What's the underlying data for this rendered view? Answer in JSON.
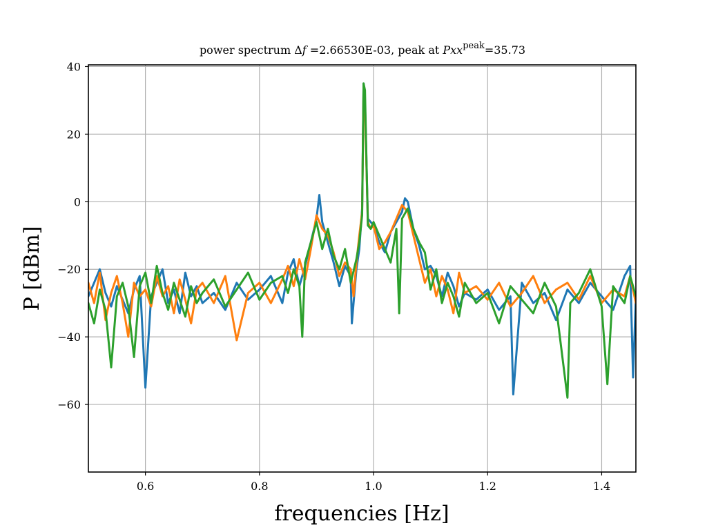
{
  "chart_data": {
    "type": "line",
    "title": "power spectrum Δf =2.66530E-03, peak at Pxx^peak=35.73",
    "title_parts": {
      "prefix": "power spectrum ",
      "delta": "Δ",
      "f": "f",
      "eq": " =2.66530E-03, peak at ",
      "pxx": "Pxx",
      "sup": "peak",
      "value": "=35.73"
    },
    "xlabel": "frequencies [Hz]",
    "ylabel": "P [dBm]",
    "xlim": [
      0.5,
      1.46
    ],
    "ylim": [
      -80,
      40.5
    ],
    "xticks": [
      0.6,
      0.8,
      1.0,
      1.2,
      1.4
    ],
    "xtick_labels": [
      "0.6",
      "0.8",
      "1.0",
      "1.2",
      "1.4"
    ],
    "yticks": [
      -60,
      -40,
      -20,
      0,
      20,
      40
    ],
    "ytick_labels": [
      "−60",
      "−40",
      "−20",
      "0",
      "20",
      "40"
    ],
    "grid": true,
    "colors": [
      "#1f77b4",
      "#ff7f0e",
      "#2ca02c"
    ],
    "series": [
      {
        "x": [
          0.5,
          0.51,
          0.52,
          0.53,
          0.54,
          0.55,
          0.56,
          0.57,
          0.58,
          0.59,
          0.6,
          0.61,
          0.62,
          0.63,
          0.64,
          0.65,
          0.66,
          0.67,
          0.68,
          0.69,
          0.7,
          0.72,
          0.74,
          0.76,
          0.78,
          0.8,
          0.82,
          0.84,
          0.85,
          0.86,
          0.87,
          0.88,
          0.89,
          0.9,
          0.905,
          0.91,
          0.92,
          0.93,
          0.94,
          0.95,
          0.96,
          0.962,
          0.97,
          0.975,
          0.98,
          0.9825,
          0.985,
          0.99,
          0.995,
          1.0,
          1.01,
          1.02,
          1.03,
          1.04,
          1.05,
          1.055,
          1.06,
          1.07,
          1.08,
          1.09,
          1.1,
          1.11,
          1.12,
          1.13,
          1.14,
          1.15,
          1.16,
          1.18,
          1.2,
          1.22,
          1.24,
          1.245,
          1.26,
          1.28,
          1.3,
          1.32,
          1.34,
          1.36,
          1.38,
          1.4,
          1.42,
          1.44,
          1.45,
          1.455,
          1.46
        ],
        "y": [
          -28,
          -24,
          -20,
          -27,
          -31,
          -25,
          -29,
          -33,
          -26,
          -22,
          -55,
          -28,
          -24,
          -20,
          -30,
          -26,
          -33,
          -21,
          -28,
          -25,
          -30,
          -27,
          -32,
          -24,
          -29,
          -26,
          -22,
          -30,
          -21,
          -17,
          -25,
          -19,
          -12,
          -5,
          2,
          -6,
          -12,
          -18,
          -25,
          -19,
          -22,
          -36,
          -20,
          -14,
          -2,
          35,
          30,
          -5,
          -6,
          -7,
          -12,
          -15,
          -9,
          -6,
          -3,
          1,
          0,
          -8,
          -13,
          -20,
          -19,
          -22,
          -28,
          -21,
          -25,
          -31,
          -27,
          -29,
          -26,
          -32,
          -28,
          -57,
          -24,
          -30,
          -27,
          -35,
          -26,
          -30,
          -24,
          -28,
          -32,
          -22,
          -19,
          -52,
          -28
        ]
      },
      {
        "x": [
          0.5,
          0.51,
          0.52,
          0.53,
          0.54,
          0.55,
          0.56,
          0.57,
          0.58,
          0.59,
          0.6,
          0.61,
          0.62,
          0.63,
          0.64,
          0.65,
          0.66,
          0.67,
          0.68,
          0.69,
          0.7,
          0.72,
          0.74,
          0.76,
          0.78,
          0.8,
          0.82,
          0.84,
          0.85,
          0.86,
          0.87,
          0.88,
          0.89,
          0.9,
          0.91,
          0.92,
          0.93,
          0.94,
          0.95,
          0.96,
          0.965,
          0.97,
          0.975,
          0.98,
          0.9825,
          0.985,
          0.99,
          0.995,
          1.0,
          1.01,
          1.02,
          1.03,
          1.04,
          1.05,
          1.06,
          1.07,
          1.08,
          1.09,
          1.1,
          1.11,
          1.12,
          1.13,
          1.14,
          1.15,
          1.16,
          1.18,
          1.2,
          1.22,
          1.24,
          1.26,
          1.28,
          1.3,
          1.32,
          1.34,
          1.36,
          1.38,
          1.4,
          1.42,
          1.44,
          1.45,
          1.46
        ],
        "y": [
          -24,
          -30,
          -21,
          -35,
          -27,
          -22,
          -30,
          -40,
          -24,
          -28,
          -26,
          -31,
          -22,
          -28,
          -25,
          -33,
          -23,
          -29,
          -36,
          -26,
          -24,
          -30,
          -22,
          -41,
          -27,
          -24,
          -30,
          -23,
          -19,
          -25,
          -17,
          -23,
          -14,
          -4,
          -8,
          -10,
          -15,
          -22,
          -18,
          -20,
          -28,
          -18,
          -10,
          -3,
          34,
          28,
          -6,
          -8,
          -7,
          -14,
          -12,
          -9,
          -5,
          -1,
          -3,
          -10,
          -17,
          -24,
          -20,
          -28,
          -22,
          -26,
          -33,
          -21,
          -27,
          -25,
          -29,
          -24,
          -31,
          -27,
          -22,
          -30,
          -26,
          -24,
          -29,
          -22,
          -30,
          -26,
          -28,
          -22,
          -30
        ]
      },
      {
        "x": [
          0.5,
          0.51,
          0.52,
          0.53,
          0.54,
          0.55,
          0.56,
          0.57,
          0.58,
          0.59,
          0.6,
          0.61,
          0.62,
          0.63,
          0.64,
          0.65,
          0.66,
          0.67,
          0.68,
          0.69,
          0.7,
          0.72,
          0.74,
          0.76,
          0.78,
          0.8,
          0.82,
          0.84,
          0.85,
          0.86,
          0.87,
          0.875,
          0.88,
          0.89,
          0.9,
          0.91,
          0.92,
          0.93,
          0.94,
          0.95,
          0.96,
          0.97,
          0.975,
          0.98,
          0.9825,
          0.985,
          0.99,
          0.995,
          1.0,
          1.01,
          1.02,
          1.03,
          1.04,
          1.045,
          1.05,
          1.06,
          1.07,
          1.08,
          1.09,
          1.1,
          1.11,
          1.12,
          1.13,
          1.14,
          1.15,
          1.16,
          1.18,
          1.2,
          1.22,
          1.24,
          1.26,
          1.28,
          1.3,
          1.32,
          1.34,
          1.345,
          1.36,
          1.38,
          1.4,
          1.41,
          1.42,
          1.44,
          1.45,
          1.46
        ],
        "y": [
          -30,
          -36,
          -26,
          -32,
          -49,
          -28,
          -24,
          -31,
          -46,
          -25,
          -21,
          -30,
          -19,
          -27,
          -32,
          -24,
          -29,
          -34,
          -25,
          -30,
          -27,
          -23,
          -31,
          -26,
          -21,
          -29,
          -24,
          -22,
          -27,
          -20,
          -25,
          -40,
          -18,
          -12,
          -6,
          -14,
          -8,
          -16,
          -20,
          -14,
          -24,
          -17,
          -12,
          -4,
          35,
          33,
          -7,
          -8,
          -6,
          -10,
          -14,
          -18,
          -8,
          -33,
          -5,
          -2,
          -8,
          -12,
          -15,
          -26,
          -20,
          -30,
          -24,
          -28,
          -34,
          -24,
          -30,
          -27,
          -36,
          -25,
          -29,
          -33,
          -24,
          -31,
          -58,
          -30,
          -27,
          -20,
          -31,
          -54,
          -25,
          -30,
          -22,
          -28
        ]
      }
    ]
  }
}
